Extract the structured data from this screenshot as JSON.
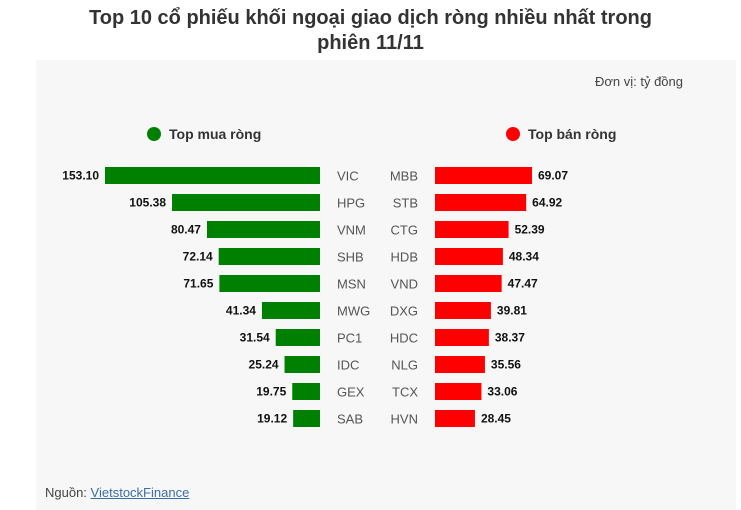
{
  "title_line1": "Top 10 cổ phiếu khối ngoại giao dịch ròng nhiều nhất trong",
  "title_line2": "phiên 11/11",
  "unit": "Đơn vị: tỷ đồng",
  "source_label": "Nguồn:",
  "source_link": "VietstockFinance",
  "colors": {
    "buy": "#008000",
    "sell": "#ff0000"
  },
  "chart_data": [
    {
      "type": "bar",
      "orientation": "horizontal",
      "legend": "Top mua ròng",
      "categories": [
        "VIC",
        "HPG",
        "VNM",
        "SHB",
        "MSN",
        "MWG",
        "PC1",
        "IDC",
        "GEX",
        "SAB"
      ],
      "values": [
        153.1,
        105.38,
        80.47,
        72.14,
        71.65,
        41.34,
        31.54,
        25.24,
        19.75,
        19.12
      ],
      "value_labels": [
        "153.10",
        "105.38",
        "80.47",
        "72.14",
        "71.65",
        "41.34",
        "31.54",
        "25.24",
        "19.75",
        "19.12"
      ],
      "color": "#008000",
      "direction": "leftward"
    },
    {
      "type": "bar",
      "orientation": "horizontal",
      "legend": "Top bán ròng",
      "categories": [
        "MBB",
        "STB",
        "CTG",
        "HDB",
        "VND",
        "DXG",
        "HDC",
        "NLG",
        "TCX",
        "HVN"
      ],
      "values": [
        69.07,
        64.92,
        52.39,
        48.34,
        47.47,
        39.81,
        38.37,
        35.56,
        33.06,
        28.45
      ],
      "value_labels": [
        "69.07",
        "64.92",
        "52.39",
        "48.34",
        "47.47",
        "39.81",
        "38.37",
        "35.56",
        "33.06",
        "28.45"
      ],
      "color": "#ff0000",
      "direction": "rightward"
    }
  ]
}
